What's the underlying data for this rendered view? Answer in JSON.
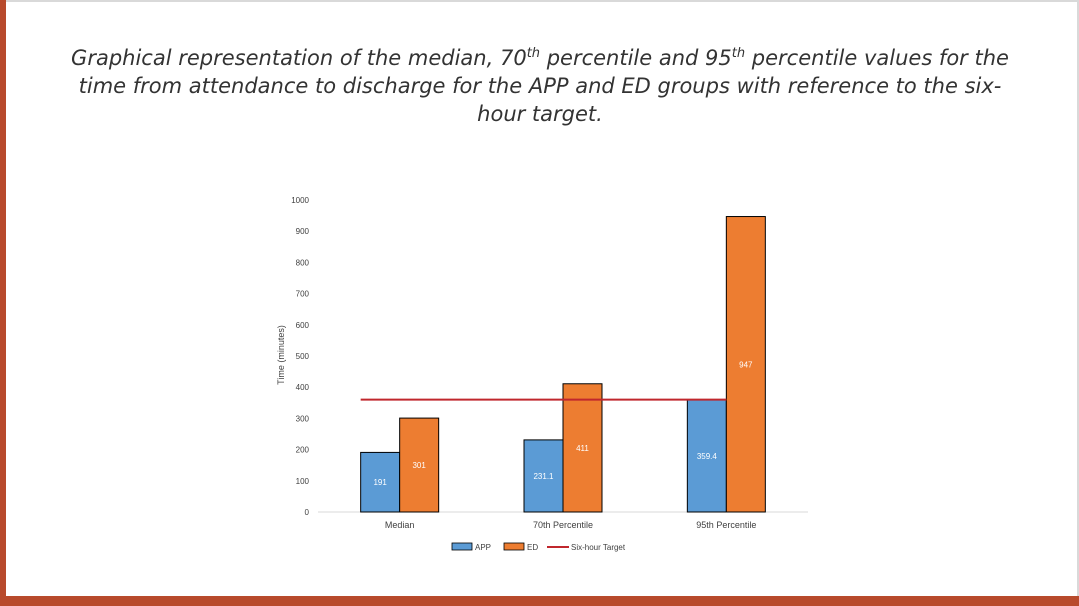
{
  "slide": {
    "title_part1": "Graphical representation of the median, 70",
    "title_sup1": "th",
    "title_part2": " percentile and 95",
    "title_sup2": "th",
    "title_part3": " percentile values for the time from attendance to discharge for the APP and ED groups with reference to the six-hour target."
  },
  "colors": {
    "app": "#5b9bd5",
    "ed": "#ed7d31",
    "target": "#c0272d",
    "frame": "#b84a2c"
  },
  "chart_data": {
    "type": "bar",
    "title": "",
    "xlabel": "",
    "ylabel": "Time (minutes)",
    "ylim": [
      0,
      1000
    ],
    "yticks": [
      0,
      100,
      200,
      300,
      400,
      500,
      600,
      700,
      800,
      900,
      1000
    ],
    "categories": [
      "Median",
      "70th Percentile",
      "95th Percentile"
    ],
    "series": [
      {
        "name": "APP",
        "values": [
          191,
          231.1,
          359.4
        ],
        "labels": [
          "191",
          "231.1",
          "359.4"
        ]
      },
      {
        "name": "ED",
        "values": [
          301,
          411,
          947
        ],
        "labels": [
          "301",
          "411",
          "947"
        ]
      }
    ],
    "reference_line": {
      "name": "Six-hour Target",
      "value": 360
    },
    "legend_position": "bottom",
    "grid": false
  }
}
